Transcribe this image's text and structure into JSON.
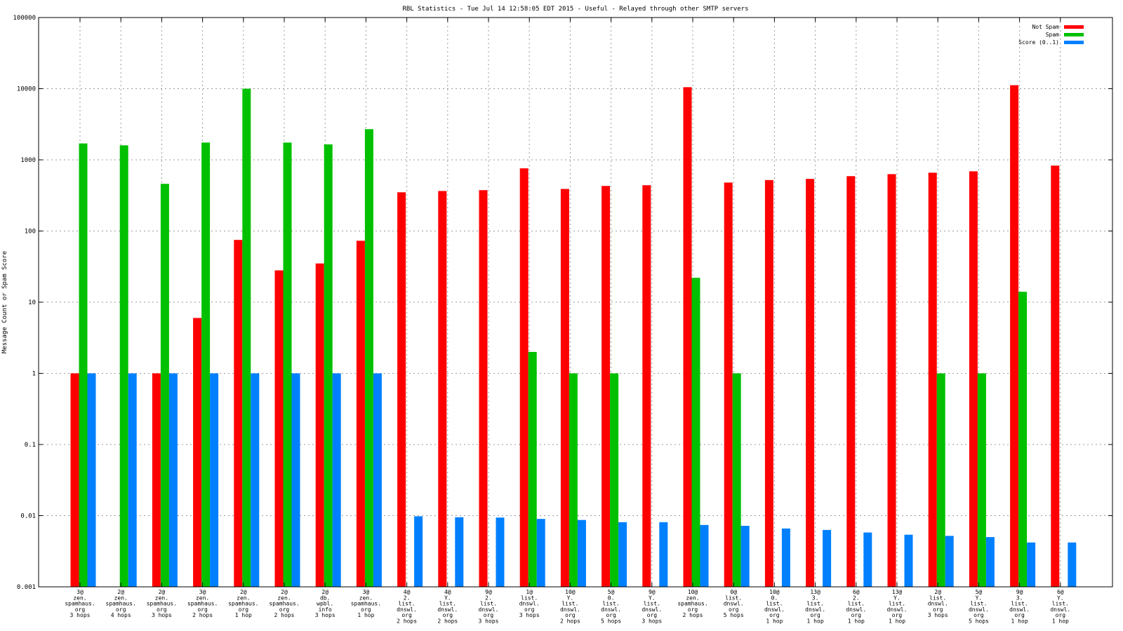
{
  "chart_data": {
    "type": "bar",
    "title": "RBL Statistics - Tue Jul 14 12:58:05 EDT 2015 - Useful - Relayed through other SMTP servers",
    "ylabel": "Message Count or Spam Score",
    "xlabel": "",
    "yscale": "log",
    "ylim": [
      0.001,
      100000
    ],
    "yticks": [
      "0.001",
      "0.01",
      "0.1",
      "1",
      "10",
      "100",
      "1000",
      "10000",
      "100000"
    ],
    "grid": true,
    "legend_position": "top-right",
    "categories": [
      [
        "3@",
        "zen.",
        "spamhaus.",
        "org",
        "3 hops"
      ],
      [
        "2@",
        "zen.",
        "spamhaus.",
        "org",
        "4 hops"
      ],
      [
        "2@",
        "zen.",
        "spamhaus.",
        "org",
        "3 hops"
      ],
      [
        "3@",
        "zen.",
        "spamhaus.",
        "org",
        "2 hops"
      ],
      [
        "2@",
        "zen.",
        "spamhaus.",
        "org",
        "1 hop"
      ],
      [
        "2@",
        "zen.",
        "spamhaus.",
        "org",
        "2 hops"
      ],
      [
        "2@",
        "db.",
        "wpbl.",
        "info",
        "3 hops"
      ],
      [
        "3@",
        "zen.",
        "spamhaus.",
        "org",
        "1 hop"
      ],
      [
        "4@",
        "2.",
        "list.",
        "dnswl.",
        "org",
        "2 hops"
      ],
      [
        "4@",
        "Y.",
        "list.",
        "dnswl.",
        "org",
        "2 hops"
      ],
      [
        "9@",
        "2.",
        "list.",
        "dnswl.",
        "org",
        "3 hops"
      ],
      [
        "1@",
        "list.",
        "dnswl.",
        "org",
        "3 hops"
      ],
      [
        "10@",
        "Y.",
        "list.",
        "dnswl.",
        "org",
        "2 hops"
      ],
      [
        "5@",
        "0.",
        "list.",
        "dnswl.",
        "org",
        "5 hops"
      ],
      [
        "9@",
        "Y.",
        "list.",
        "dnswl.",
        "org",
        "3 hops"
      ],
      [
        "10@",
        "zen.",
        "spamhaus.",
        "org",
        "2 hops"
      ],
      [
        "0@",
        "list.",
        "dnswl.",
        "org",
        "5 hops"
      ],
      [
        "10@",
        "0.",
        "list.",
        "dnswl.",
        "org",
        "1 hop"
      ],
      [
        "13@",
        "3.",
        "list.",
        "dnswl.",
        "org",
        "1 hop"
      ],
      [
        "6@",
        "2.",
        "list.",
        "dnswl.",
        "org",
        "1 hop"
      ],
      [
        "13@",
        "Y.",
        "list.",
        "dnswl.",
        "org",
        "1 hop"
      ],
      [
        "2@",
        "list.",
        "dnswl.",
        "org",
        "3 hops"
      ],
      [
        "5@",
        "Y.",
        "list.",
        "dnswl.",
        "org",
        "5 hops"
      ],
      [
        "9@",
        "3.",
        "list.",
        "dnswl.",
        "org",
        "1 hop"
      ],
      [
        "6@",
        "Y.",
        "list.",
        "dnswl.",
        "org",
        "1 hop"
      ]
    ],
    "series": [
      {
        "name": "Not Spam",
        "color": "#ff0000",
        "values": [
          1,
          null,
          1,
          6,
          75,
          28,
          35,
          73,
          350,
          365,
          375,
          760,
          390,
          430,
          440,
          10500,
          480,
          520,
          540,
          590,
          630,
          660,
          690,
          11200,
          830
        ]
      },
      {
        "name": "Spam",
        "color": "#00c000",
        "values": [
          1700,
          1600,
          460,
          1750,
          10000,
          1750,
          1650,
          2700,
          null,
          null,
          null,
          2,
          1,
          1,
          null,
          22,
          1,
          null,
          null,
          null,
          null,
          1,
          1,
          14,
          null
        ]
      },
      {
        "name": "Score (0..1)",
        "color": "#0080ff",
        "values": [
          1,
          1,
          1,
          1,
          1,
          1,
          1,
          1,
          0.0098,
          0.0095,
          0.0094,
          0.009,
          0.0087,
          0.0081,
          0.0081,
          0.0074,
          0.0072,
          0.0066,
          0.0063,
          0.0058,
          0.0054,
          0.0052,
          0.005,
          0.0042,
          0.0042
        ]
      }
    ]
  }
}
